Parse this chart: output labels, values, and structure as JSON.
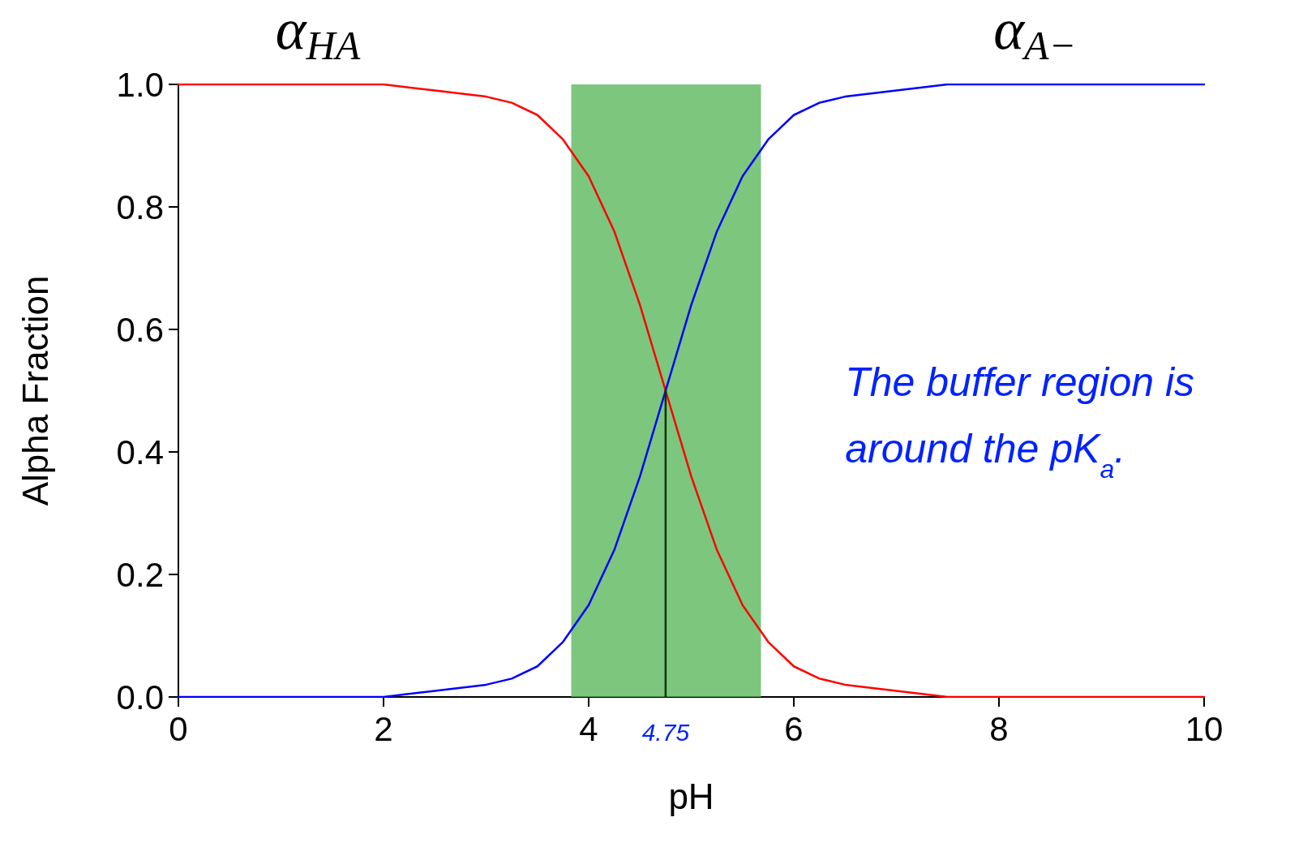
{
  "chart_data": {
    "type": "line",
    "xlabel": "pH",
    "ylabel": "Alpha Fraction",
    "xlim": [
      0,
      10
    ],
    "xticks": [
      0,
      2,
      4,
      6,
      8,
      10
    ],
    "ylim": [
      0,
      1
    ],
    "yticks": [
      {
        "value": 0,
        "label": "0.0"
      },
      {
        "value": 0.2,
        "label": "0.2"
      },
      {
        "value": 0.4,
        "label": "0.4"
      },
      {
        "value": 0.6,
        "label": "0.6"
      },
      {
        "value": 0.8,
        "label": "0.8"
      },
      {
        "value": 1,
        "label": "1.0"
      }
    ],
    "x": [
      0,
      1,
      2,
      2.5,
      3,
      3.25,
      3.5,
      3.75,
      4,
      4.25,
      4.5,
      4.75,
      5,
      5.25,
      5.5,
      5.75,
      6,
      6.25,
      6.5,
      7,
      7.5,
      8,
      9,
      10
    ],
    "series": [
      {
        "name": "α$_{HA}$",
        "color": "#ff0000",
        "values": [
          1.0,
          1.0,
          1.0,
          0.99,
          0.98,
          0.97,
          0.95,
          0.91,
          0.85,
          0.76,
          0.64,
          0.5,
          0.36,
          0.24,
          0.15,
          0.09,
          0.05,
          0.03,
          0.02,
          0.01,
          0.0,
          0.0,
          0.0,
          0.0
        ]
      },
      {
        "name": "α$_{A−}$",
        "color": "#0000ff",
        "values": [
          0.0,
          0.0,
          0.0,
          0.01,
          0.02,
          0.03,
          0.05,
          0.09,
          0.15,
          0.24,
          0.36,
          0.5,
          0.64,
          0.76,
          0.85,
          0.91,
          0.95,
          0.97,
          0.98,
          0.99,
          1.0,
          1.0,
          1.0,
          1.0
        ]
      },
      {
        "type": "line",
        "color": "#003300",
        "x": [
          4.75,
          4.75
        ],
        "values": [
          0,
          0.5
        ]
      }
    ],
    "bands": [
      {
        "axis": "x",
        "from": 3.83,
        "to": 5.68,
        "color": "#5cb85c"
      }
    ],
    "annotations": [
      {
        "text": "4.75",
        "x": 4.75,
        "y": 0
      },
      "The buffer region is around the pK$_{a}$."
    ],
    "grid": false,
    "legend": false,
    "marker": "none",
    "line_style": "solid"
  }
}
